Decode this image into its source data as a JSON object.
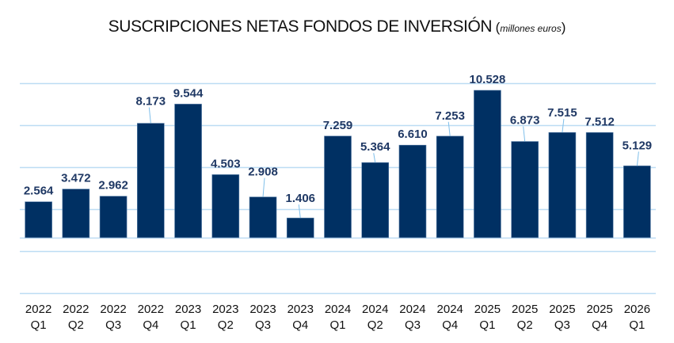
{
  "chart_data": {
    "type": "bar",
    "title": "SUSCRIPCIONES NETAS FONDOS DE INVERSIÓN",
    "subtitle": "millones euros",
    "xlabel": "",
    "ylabel": "",
    "categories": [
      [
        "2022",
        "Q1"
      ],
      [
        "2022",
        "Q2"
      ],
      [
        "2022",
        "Q3"
      ],
      [
        "2022",
        "Q4"
      ],
      [
        "2023",
        "Q1"
      ],
      [
        "2023",
        "Q2"
      ],
      [
        "2023",
        "Q3"
      ],
      [
        "2023",
        "Q4"
      ],
      [
        "2024",
        "Q1"
      ],
      [
        "2024",
        "Q2"
      ],
      [
        "2024",
        "Q3"
      ],
      [
        "2024",
        "Q4"
      ],
      [
        "2025",
        "Q1"
      ],
      [
        "2025",
        "Q2"
      ],
      [
        "2025",
        "Q3"
      ],
      [
        "2025",
        "Q4"
      ],
      [
        "2026",
        "Q1"
      ]
    ],
    "values": [
      2564,
      3472,
      2962,
      8173,
      9544,
      4503,
      2908,
      1406,
      7259,
      5364,
      6610,
      7253,
      10528,
      6873,
      7515,
      7512,
      5129
    ],
    "value_labels": [
      "2.564",
      "3.472",
      "2.962",
      "8.173",
      "9.544",
      "4.503",
      "2.908",
      "1.406",
      "7.259",
      "5.364",
      "6.610",
      "7.253",
      "10.528",
      "6.873",
      "7.515",
      "7.512",
      "5.129"
    ],
    "ylim": [
      -4960,
      12000
    ],
    "gridlines": [
      11040,
      8040,
      5040,
      2040,
      -960,
      -3960
    ],
    "grid": true,
    "y_tick_labels_visible": false,
    "legend": "none",
    "colors": {
      "bar": "#003063",
      "grid": "#bcdcf4",
      "label": "#1f3864",
      "leader": "#7fbfea"
    }
  }
}
